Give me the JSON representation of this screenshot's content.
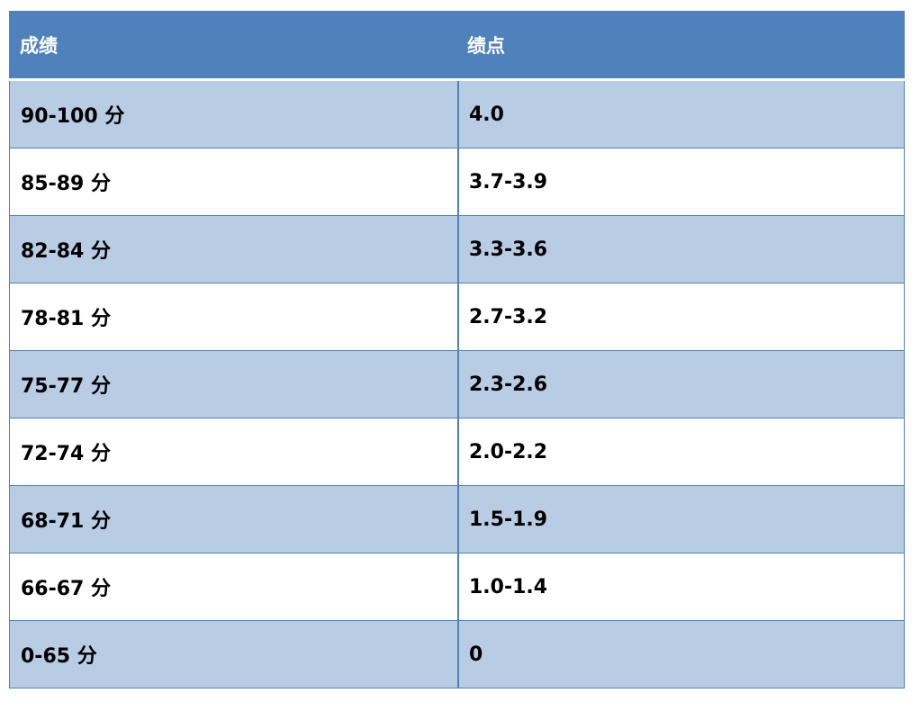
{
  "table": {
    "header": [
      "成绩",
      "绩点"
    ],
    "rows": [
      [
        "90-100 分",
        "4.0"
      ],
      [
        "85-89 分",
        "3.7-3.9"
      ],
      [
        "82-84 分",
        "3.3-3.6"
      ],
      [
        "78-81 分",
        "2.7-3.2"
      ],
      [
        "75-77 分",
        "2.3-2.6"
      ],
      [
        "72-74 分",
        "2.0-2.2"
      ],
      [
        "68-71 分",
        "1.5-1.9"
      ],
      [
        "66-67 分",
        "1.0-1.4"
      ],
      [
        "0-65 分",
        "0"
      ]
    ]
  }
}
